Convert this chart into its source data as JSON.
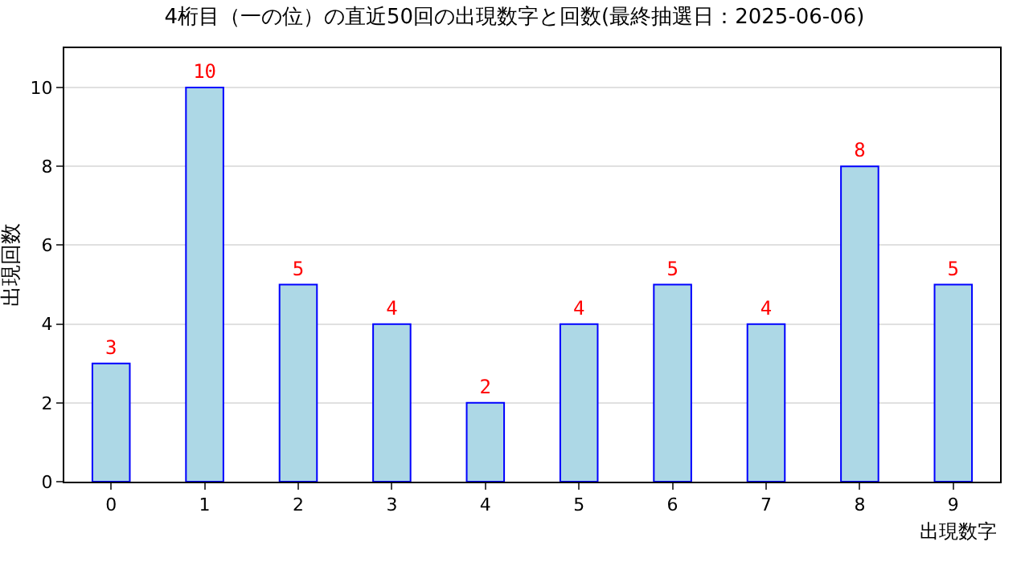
{
  "chart_data": {
    "type": "bar",
    "title": "4桁目（一の位）の直近50回の出現数字と回数(最終抽選日：2025-06-06)",
    "xlabel": "出現数字",
    "ylabel": "出現回数",
    "categories": [
      "0",
      "1",
      "2",
      "3",
      "4",
      "5",
      "6",
      "7",
      "8",
      "9"
    ],
    "values": [
      3,
      10,
      5,
      4,
      2,
      4,
      5,
      4,
      8,
      5
    ],
    "color": "#add8e6",
    "ylim": [
      0,
      11
    ],
    "yticks": [
      0,
      2,
      4,
      6,
      8,
      10
    ],
    "grid": "y",
    "data_labels": true
  }
}
